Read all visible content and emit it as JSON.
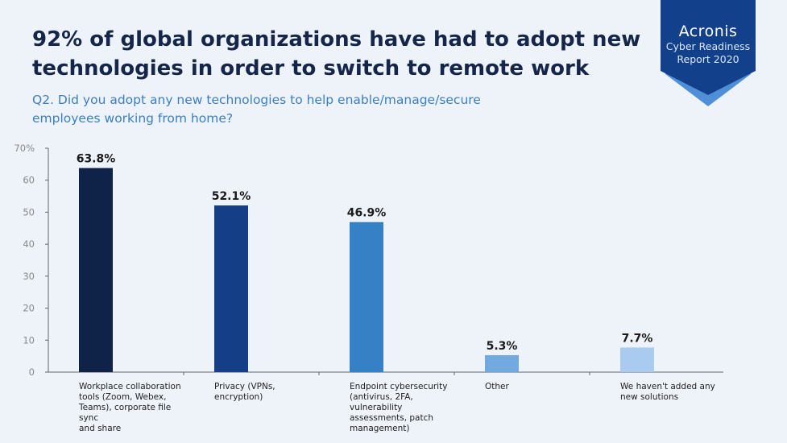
{
  "header": {
    "title_lines": [
      "92% of global organizations have had to adopt new",
      "technologies in order to switch to remote work"
    ],
    "subtitle_lines": [
      "Q2. Did you adopt any new technologies to help enable/manage/secure",
      "employees working from home?"
    ]
  },
  "brand": {
    "name": "Acronis",
    "line1": "Cyber Readiness",
    "line2": "Report 2020",
    "colors": {
      "badge_dark": "#13408a",
      "badge_light": "#4f8fd8"
    }
  },
  "chart_data": {
    "type": "bar",
    "categories": [
      [
        "Workplace collaboration",
        "tools (Zoom, Webex,",
        "Teams), corporate file sync",
        "and share"
      ],
      [
        "Privacy (VPNs,",
        "encryption)"
      ],
      [
        "Endpoint cybersecurity",
        "(antivirus, 2FA, vulnerability",
        "assessments, patch",
        "management)"
      ],
      [
        "Other"
      ],
      [
        "We haven't added any",
        "new solutions"
      ]
    ],
    "values": [
      63.8,
      52.1,
      46.9,
      5.3,
      7.7
    ],
    "value_labels": [
      "63.8%",
      "52.1%",
      "46.9%",
      "5.3%",
      "7.7%"
    ],
    "colors": [
      "#0f2248",
      "#143f86",
      "#3680c6",
      "#72a9de",
      "#a9cbef"
    ],
    "ylim": [
      0,
      70
    ],
    "yticks": [
      0,
      10,
      20,
      30,
      40,
      50,
      60,
      70
    ],
    "ytick_labels": [
      "0",
      "10",
      "20",
      "30",
      "40",
      "50",
      "60",
      "70%"
    ],
    "grid": false
  }
}
